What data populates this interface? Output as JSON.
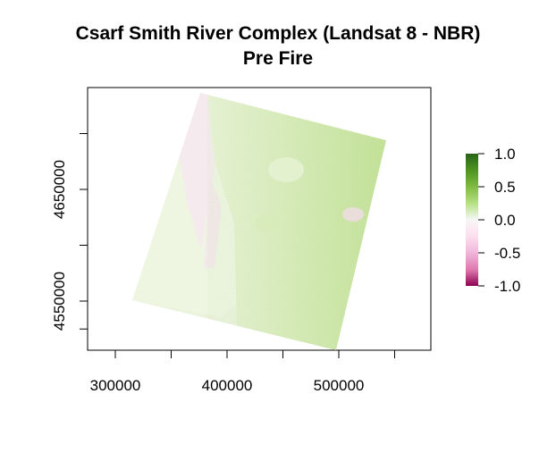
{
  "title_line1": "Csarf Smith River Complex (Landsat 8 - NBR)",
  "title_line2": "Pre Fire",
  "chart_data": {
    "type": "heatmap",
    "title": "Csarf Smith River Complex (Landsat 8 - NBR)\nPre Fire",
    "x_ticks": [
      300000,
      350000,
      400000,
      450000,
      500000,
      550000
    ],
    "x_tick_labels": [
      "300000",
      "",
      "400000",
      "",
      "500000",
      ""
    ],
    "y_ticks": [
      4525000,
      4550000,
      4600000,
      4650000,
      4700000
    ],
    "y_tick_labels": [
      "",
      "4550000",
      "",
      "4650000",
      ""
    ],
    "xlim": [
      280000,
      580000
    ],
    "ylim": [
      4507000,
      4597000
    ],
    "raster_corners": [
      {
        "x": 360000,
        "y": 4741000
      },
      {
        "x": 540000,
        "y": 4708000
      },
      {
        "x": 498000,
        "y": 4518000
      },
      {
        "x": 317000,
        "y": 4554000
      }
    ],
    "legend": {
      "values": [
        1.0,
        0.5,
        0.0,
        -0.5,
        -1.0
      ],
      "labels": [
        "1.0",
        "0.5",
        "0.0",
        "-0.5",
        "-1.0"
      ],
      "colors": [
        "#276419",
        "#7fbc41",
        "#f7f7f7",
        "#f1b6da",
        "#c51b7d"
      ],
      "placement": "right"
    },
    "grid": false
  }
}
